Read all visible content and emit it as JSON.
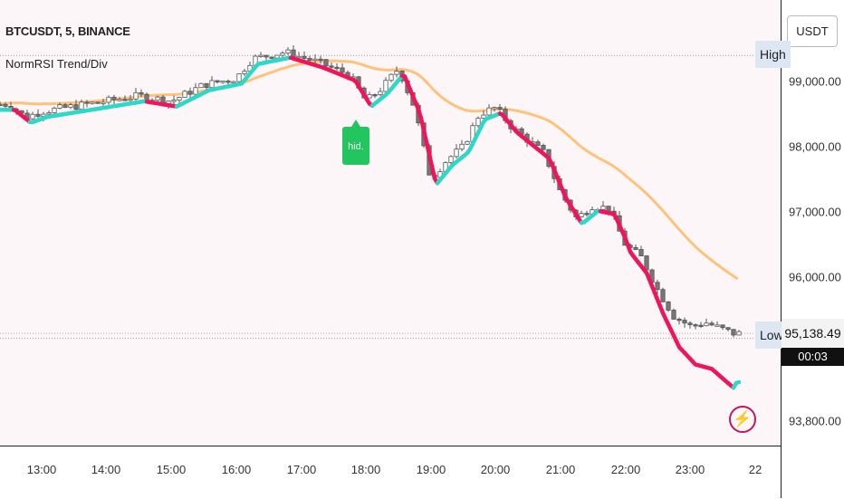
{
  "header": {
    "symbol_line": "BTCUSDT, 5, BINANCE",
    "indicator_name": "NormRSI Trend/Div"
  },
  "price_axis": {
    "currency": "USDT",
    "ticks": [
      "99,000.00",
      "98,000.00",
      "97,000.00",
      "96,000.00",
      "93,800.00"
    ],
    "tick_values": [
      99000,
      98000,
      97000,
      96000,
      93800
    ],
    "last_price": "95,138.49",
    "countdown": "00:03",
    "high_label": "High",
    "low_label": "Low",
    "high_value": 99400,
    "low_value": 95060
  },
  "time_axis": {
    "labels": [
      "13:00",
      "14:00",
      "15:00",
      "16:00",
      "17:00",
      "18:00",
      "19:00",
      "20:00",
      "21:00",
      "22:00",
      "23:00",
      "22"
    ]
  },
  "signal": {
    "label": "hid.",
    "color": "#22c55e"
  },
  "colors": {
    "bull": "#2ed8c8",
    "bear": "#f0145a",
    "ma": "#ffc27a",
    "candle_up": "#ffffff",
    "candle_down": "#777777",
    "background": "#fdf6f9",
    "alert": "#c2185b"
  },
  "icons": {
    "alert": "lightning-bolt-icon"
  },
  "chart_data": {
    "type": "candlestick",
    "title": "BTCUSDT, 5, BINANCE",
    "x": [
      "13:00",
      "14:00",
      "15:00",
      "16:00",
      "17:00",
      "18:00",
      "19:00",
      "20:00",
      "21:00",
      "22:00",
      "23:00"
    ],
    "ylim": [
      93500,
      100400
    ],
    "close_path": [
      {
        "t": "12:30",
        "v": 98650
      },
      {
        "t": "12:45",
        "v": 98450
      },
      {
        "t": "13:00",
        "v": 98540
      },
      {
        "t": "13:30",
        "v": 98620
      },
      {
        "t": "14:00",
        "v": 98700
      },
      {
        "t": "14:30",
        "v": 98780
      },
      {
        "t": "15:00",
        "v": 98700
      },
      {
        "t": "15:30",
        "v": 98950
      },
      {
        "t": "16:00",
        "v": 99050
      },
      {
        "t": "16:15",
        "v": 99350
      },
      {
        "t": "16:45",
        "v": 99450
      },
      {
        "t": "17:15",
        "v": 99300
      },
      {
        "t": "17:45",
        "v": 99100
      },
      {
        "t": "18:00",
        "v": 98700
      },
      {
        "t": "18:15",
        "v": 98900
      },
      {
        "t": "18:30",
        "v": 99200
      },
      {
        "t": "18:45",
        "v": 98600
      },
      {
        "t": "19:00",
        "v": 97500
      },
      {
        "t": "19:15",
        "v": 97800
      },
      {
        "t": "19:30",
        "v": 98000
      },
      {
        "t": "19:45",
        "v": 98500
      },
      {
        "t": "20:00",
        "v": 98600
      },
      {
        "t": "20:15",
        "v": 98300
      },
      {
        "t": "20:30",
        "v": 98100
      },
      {
        "t": "20:45",
        "v": 97900
      },
      {
        "t": "21:00",
        "v": 97300
      },
      {
        "t": "21:15",
        "v": 96900
      },
      {
        "t": "21:30",
        "v": 97100
      },
      {
        "t": "21:45",
        "v": 97050
      },
      {
        "t": "22:00",
        "v": 96500
      },
      {
        "t": "22:15",
        "v": 96300
      },
      {
        "t": "22:30",
        "v": 95800
      },
      {
        "t": "22:45",
        "v": 95400
      },
      {
        "t": "23:00",
        "v": 95250
      },
      {
        "t": "23:15",
        "v": 95300
      },
      {
        "t": "23:30",
        "v": 95200
      },
      {
        "t": "23:40",
        "v": 95138
      }
    ],
    "series": [
      {
        "name": "NormRSI",
        "trend": "bull/bear colored line"
      },
      {
        "name": "MA",
        "trend": "smoothed average"
      }
    ]
  }
}
